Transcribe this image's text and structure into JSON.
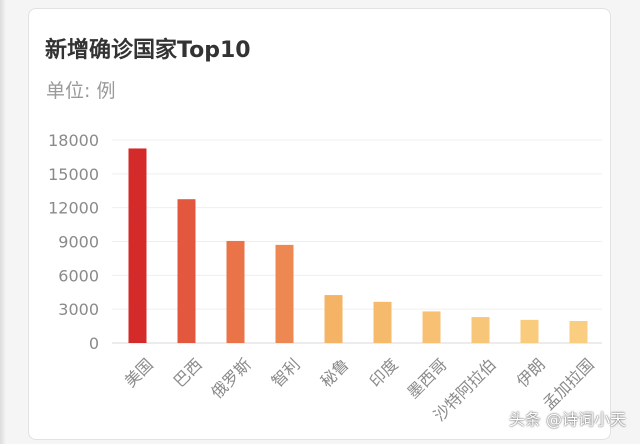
{
  "header": {
    "title": "新增确诊国家Top10",
    "unit": "单位: 例"
  },
  "watermark": "头条 @诗词小天",
  "chart_data": {
    "type": "bar",
    "title": "新增确诊国家Top10",
    "ylabel": "单位: 例",
    "xlabel": "",
    "categories": [
      "美国",
      "巴西",
      "俄罗斯",
      "智利",
      "秘鲁",
      "印度",
      "墨西哥",
      "沙特阿拉伯",
      "伊朗",
      "孟加拉国"
    ],
    "values": [
      17250,
      12750,
      9050,
      8700,
      4250,
      3650,
      2800,
      2300,
      2050,
      1950
    ],
    "ylim": [
      0,
      18000
    ],
    "yticks": [
      0,
      3000,
      6000,
      9000,
      12000,
      15000,
      18000
    ],
    "grid": true,
    "legend": "none",
    "colors": [
      "#d42a2a",
      "#e2573d",
      "#ea7347",
      "#ee8852",
      "#f5b366",
      "#f6ba6c",
      "#f7c073",
      "#f8c678",
      "#f8cb7d",
      "#f9ce80"
    ]
  }
}
